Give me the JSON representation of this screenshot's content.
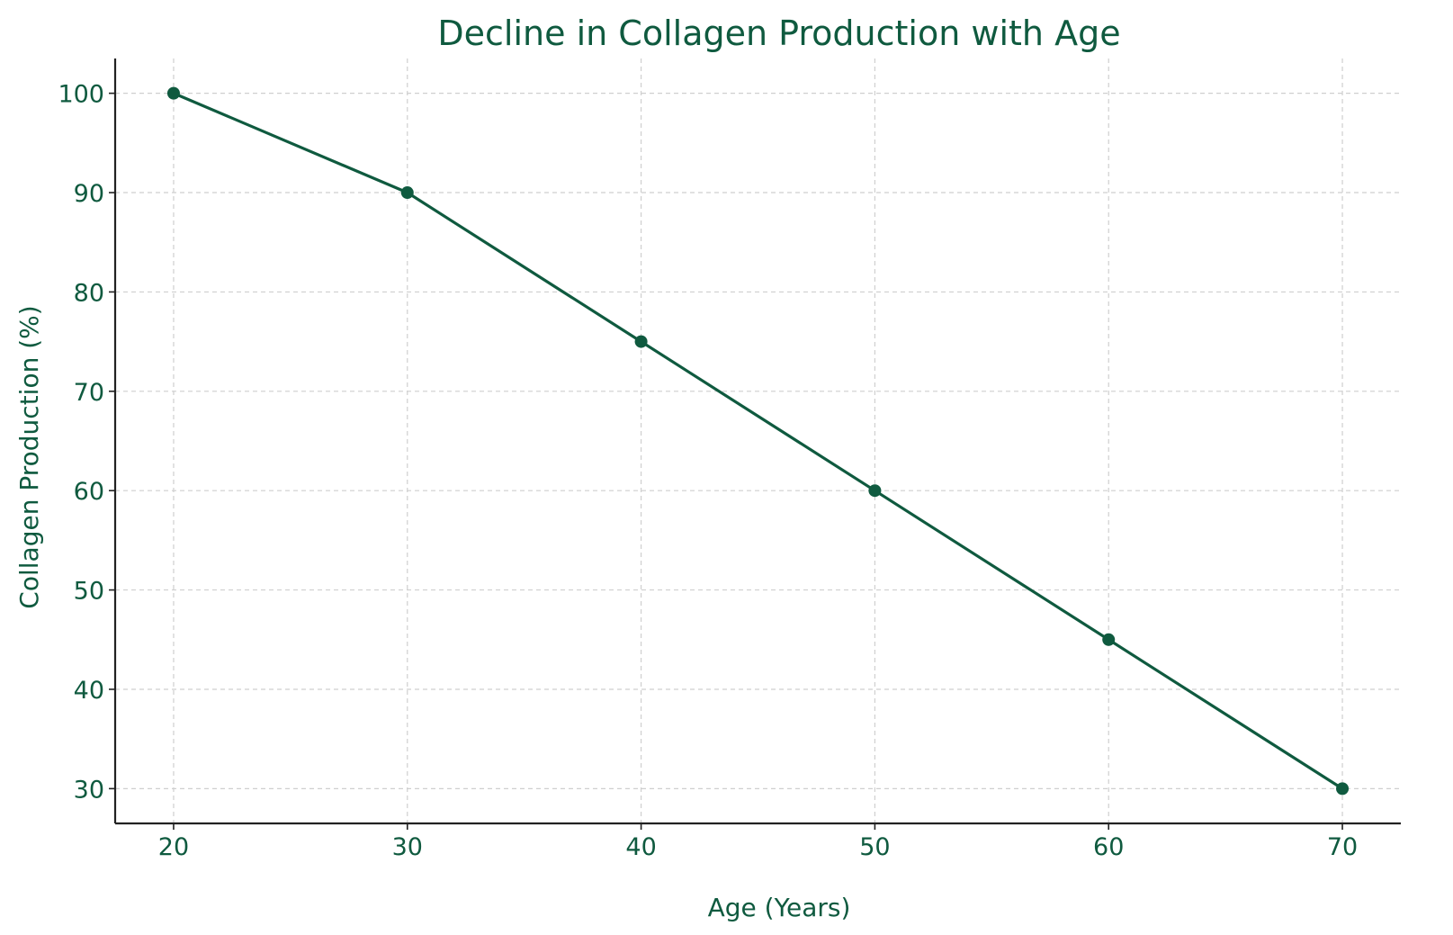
{
  "chart_data": {
    "type": "line",
    "title": "Decline in Collagen Production with Age",
    "xlabel": "Age (Years)",
    "ylabel": "Collagen Production (%)",
    "x": [
      20,
      30,
      40,
      50,
      60,
      70
    ],
    "series": [
      {
        "values": [
          100,
          90,
          75,
          60,
          45,
          30
        ]
      }
    ],
    "xticks": [
      20,
      30,
      40,
      50,
      60,
      70
    ],
    "yticks": [
      30,
      40,
      50,
      60,
      70,
      80,
      90,
      100
    ],
    "xlim": [
      17.5,
      72.5
    ],
    "ylim": [
      26.5,
      103.5
    ],
    "grid": true,
    "marker": "circle",
    "colors": {
      "series": "#0f5a3f",
      "text": "#0f5a3f",
      "axis": "#222222",
      "grid": "#cfcfcf"
    }
  }
}
